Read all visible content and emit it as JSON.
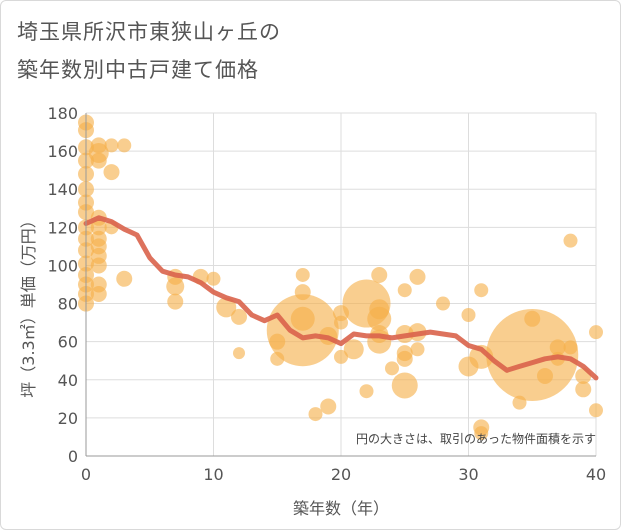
{
  "title_lines": [
    "埼玉県所沢市東狭山ヶ丘の",
    "築年数別中古戸建て価格"
  ],
  "chart_data": {
    "type": "scatter",
    "title": "埼玉県所沢市東狭山ヶ丘の築年数別中古戸建て価格",
    "xlabel": "築年数（年）",
    "ylabel": "坪（3.3㎡）単価（万円）",
    "xlim": [
      0,
      40
    ],
    "ylim": [
      0,
      180
    ],
    "xticks": [
      0,
      10,
      20,
      30,
      40
    ],
    "yticks": [
      0,
      20,
      40,
      60,
      80,
      100,
      120,
      140,
      160,
      180
    ],
    "grid": true,
    "note": "円の大きさは、取引のあった物件面積を示す",
    "colors": {
      "bubble": "#f5b04a",
      "trend": "#d9634b",
      "grid": "#dddddd",
      "axis": "#999999"
    },
    "bubbles": [
      {
        "x": 0,
        "y": 175,
        "size": 8
      },
      {
        "x": 0,
        "y": 171,
        "size": 8
      },
      {
        "x": 0,
        "y": 162,
        "size": 8
      },
      {
        "x": 0,
        "y": 155,
        "size": 8
      },
      {
        "x": 0,
        "y": 148,
        "size": 8
      },
      {
        "x": 0,
        "y": 140,
        "size": 8
      },
      {
        "x": 0,
        "y": 133,
        "size": 8
      },
      {
        "x": 0,
        "y": 128,
        "size": 8
      },
      {
        "x": 0,
        "y": 120,
        "size": 8
      },
      {
        "x": 0,
        "y": 114,
        "size": 8
      },
      {
        "x": 0,
        "y": 108,
        "size": 8
      },
      {
        "x": 0,
        "y": 101,
        "size": 8
      },
      {
        "x": 0,
        "y": 95,
        "size": 8
      },
      {
        "x": 0,
        "y": 90,
        "size": 8
      },
      {
        "x": 0,
        "y": 85,
        "size": 8
      },
      {
        "x": 0,
        "y": 80,
        "size": 8
      },
      {
        "x": 1,
        "y": 163,
        "size": 8
      },
      {
        "x": 1,
        "y": 159,
        "size": 10
      },
      {
        "x": 1,
        "y": 155,
        "size": 8
      },
      {
        "x": 1,
        "y": 125,
        "size": 8
      },
      {
        "x": 1,
        "y": 120,
        "size": 8
      },
      {
        "x": 1,
        "y": 114,
        "size": 8
      },
      {
        "x": 1,
        "y": 110,
        "size": 8
      },
      {
        "x": 1,
        "y": 105,
        "size": 8
      },
      {
        "x": 1,
        "y": 100,
        "size": 8
      },
      {
        "x": 1,
        "y": 90,
        "size": 8
      },
      {
        "x": 1,
        "y": 85,
        "size": 8
      },
      {
        "x": 2,
        "y": 163,
        "size": 7
      },
      {
        "x": 2,
        "y": 149,
        "size": 8
      },
      {
        "x": 2,
        "y": 120,
        "size": 7
      },
      {
        "x": 3,
        "y": 163,
        "size": 7
      },
      {
        "x": 3,
        "y": 93,
        "size": 8
      },
      {
        "x": 7,
        "y": 94,
        "size": 8
      },
      {
        "x": 7,
        "y": 89,
        "size": 9
      },
      {
        "x": 7,
        "y": 81,
        "size": 8
      },
      {
        "x": 9,
        "y": 94,
        "size": 8
      },
      {
        "x": 10,
        "y": 93,
        "size": 7
      },
      {
        "x": 11,
        "y": 78,
        "size": 10
      },
      {
        "x": 12,
        "y": 73,
        "size": 8
      },
      {
        "x": 12,
        "y": 54,
        "size": 6
      },
      {
        "x": 15,
        "y": 60,
        "size": 8
      },
      {
        "x": 15,
        "y": 51,
        "size": 7
      },
      {
        "x": 17,
        "y": 95,
        "size": 7
      },
      {
        "x": 17,
        "y": 86,
        "size": 8
      },
      {
        "x": 17,
        "y": 72,
        "size": 12
      },
      {
        "x": 17,
        "y": 66,
        "size": 36
      },
      {
        "x": 18,
        "y": 22,
        "size": 7
      },
      {
        "x": 19,
        "y": 26,
        "size": 8
      },
      {
        "x": 19,
        "y": 63,
        "size": 9
      },
      {
        "x": 20,
        "y": 75,
        "size": 8
      },
      {
        "x": 20,
        "y": 70,
        "size": 7
      },
      {
        "x": 20,
        "y": 52,
        "size": 7
      },
      {
        "x": 21,
        "y": 56,
        "size": 10
      },
      {
        "x": 22,
        "y": 80,
        "size": 24
      },
      {
        "x": 22,
        "y": 34,
        "size": 7
      },
      {
        "x": 23,
        "y": 95,
        "size": 8
      },
      {
        "x": 23,
        "y": 77,
        "size": 10
      },
      {
        "x": 23,
        "y": 72,
        "size": 12
      },
      {
        "x": 23,
        "y": 64,
        "size": 9
      },
      {
        "x": 23,
        "y": 60,
        "size": 12
      },
      {
        "x": 24,
        "y": 46,
        "size": 7
      },
      {
        "x": 25,
        "y": 87,
        "size": 7
      },
      {
        "x": 25,
        "y": 64,
        "size": 9
      },
      {
        "x": 25,
        "y": 54,
        "size": 8
      },
      {
        "x": 25,
        "y": 51,
        "size": 8
      },
      {
        "x": 25,
        "y": 37,
        "size": 13
      },
      {
        "x": 26,
        "y": 94,
        "size": 8
      },
      {
        "x": 26,
        "y": 56,
        "size": 7
      },
      {
        "x": 26,
        "y": 65,
        "size": 9
      },
      {
        "x": 28,
        "y": 80,
        "size": 7
      },
      {
        "x": 30,
        "y": 74,
        "size": 7
      },
      {
        "x": 30,
        "y": 47,
        "size": 10
      },
      {
        "x": 31,
        "y": 87,
        "size": 7
      },
      {
        "x": 31,
        "y": 52,
        "size": 12
      },
      {
        "x": 31,
        "y": 15,
        "size": 8
      },
      {
        "x": 31,
        "y": 12,
        "size": 7
      },
      {
        "x": 34,
        "y": 28,
        "size": 7
      },
      {
        "x": 35,
        "y": 72,
        "size": 8
      },
      {
        "x": 35,
        "y": 53,
        "size": 46
      },
      {
        "x": 36,
        "y": 42,
        "size": 8
      },
      {
        "x": 37,
        "y": 57,
        "size": 8
      },
      {
        "x": 37,
        "y": 51,
        "size": 7
      },
      {
        "x": 38,
        "y": 113,
        "size": 7
      },
      {
        "x": 38,
        "y": 57,
        "size": 7
      },
      {
        "x": 39,
        "y": 42,
        "size": 8
      },
      {
        "x": 39,
        "y": 35,
        "size": 8
      },
      {
        "x": 40,
        "y": 65,
        "size": 7
      },
      {
        "x": 40,
        "y": 24,
        "size": 7
      }
    ],
    "trend": {
      "x": [
        0,
        1,
        2,
        3,
        4,
        5,
        6,
        7,
        8,
        9,
        10,
        11,
        12,
        13,
        14,
        15,
        16,
        17,
        18,
        19,
        20,
        21,
        22,
        23,
        24,
        25,
        26,
        27,
        28,
        29,
        30,
        31,
        32,
        33,
        34,
        35,
        36,
        37,
        38,
        39,
        40
      ],
      "y": [
        122,
        125,
        123,
        119,
        116,
        104,
        97,
        95,
        94,
        91,
        86,
        83,
        81,
        74,
        71,
        74,
        66,
        62,
        63,
        62,
        59,
        64,
        63,
        63,
        62,
        63,
        64,
        65,
        64,
        63,
        58,
        56,
        50,
        45,
        47,
        49,
        51,
        52,
        51,
        47,
        41
      ]
    }
  }
}
